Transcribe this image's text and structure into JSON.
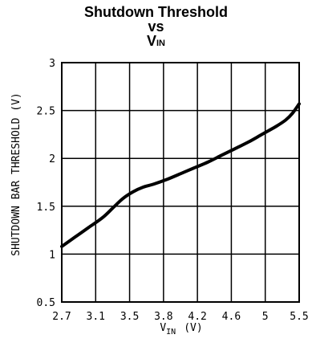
{
  "chart_data": {
    "type": "line",
    "title_line1": "Shutdown Threshold",
    "title_line2": "vs",
    "title_line3_main": "V",
    "title_line3_sub": "IN",
    "xlabel_main": "V",
    "xlabel_sub": "IN",
    "xlabel_unit": "(V)",
    "ylabel": "SHUTDOWN BAR THRESHOLD (V)",
    "xlim": [
      2.7,
      5.5
    ],
    "ylim": [
      0.5,
      3
    ],
    "grid": true,
    "x_ticks": [
      "2.7",
      "3.1",
      "3.5",
      "3.8",
      "4.2",
      "4.6",
      "5",
      "5.5"
    ],
    "y_ticks": [
      "0.5",
      "1",
      "1.5",
      "2",
      "2.5",
      "3"
    ],
    "series": [
      {
        "x": [
          2.7,
          2.86,
          3.02,
          3.18,
          3.3,
          3.42,
          3.54,
          3.66,
          3.78,
          3.94,
          4.1,
          4.26,
          4.42,
          4.58,
          4.74,
          4.9,
          5.06,
          5.22,
          5.34,
          5.42,
          5.5
        ],
        "y": [
          1.08,
          1.18,
          1.28,
          1.38,
          1.48,
          1.58,
          1.65,
          1.7,
          1.73,
          1.78,
          1.84,
          1.9,
          1.96,
          2.03,
          2.1,
          2.17,
          2.25,
          2.33,
          2.4,
          2.47,
          2.57
        ]
      }
    ]
  }
}
